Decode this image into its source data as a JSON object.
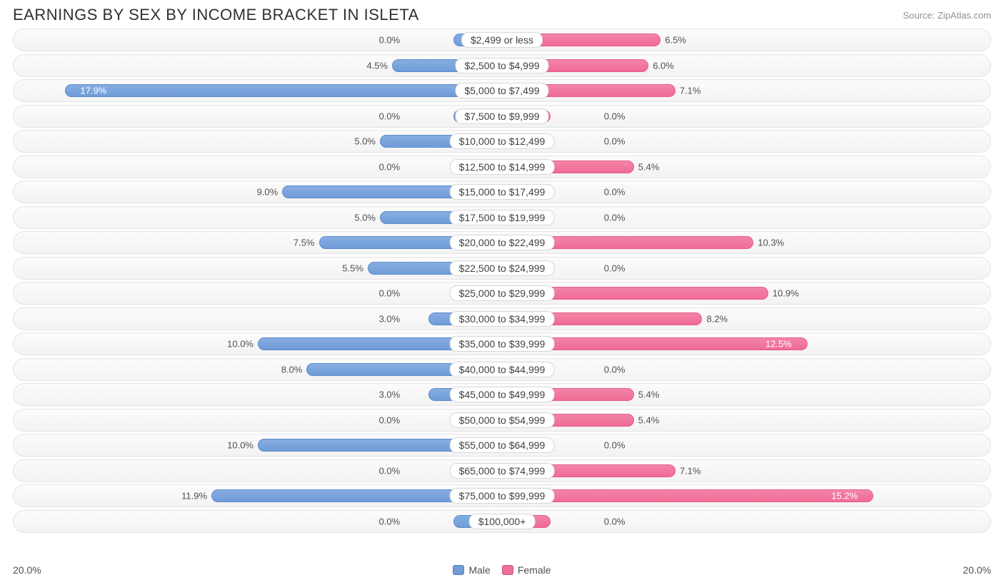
{
  "title": "EARNINGS BY SEX BY INCOME BRACKET IN ISLETA",
  "source": "Source: ZipAtlas.com",
  "chart": {
    "type": "diverging-bar",
    "axis_max": 20.0,
    "axis_left_label": "20.0%",
    "axis_right_label": "20.0%",
    "male_color": "#729dd7",
    "male_border": "#5e8ccd",
    "female_color": "#ef6f98",
    "female_border": "#e85c88",
    "row_bg_top": "#fbfbfb",
    "row_bg_bottom": "#f3f3f3",
    "row_border": "#e4e4e4",
    "label_bg": "#ffffff",
    "label_border": "#d8d8d8",
    "text_color": "#505050",
    "inside_text_color": "#ffffff",
    "min_bar_pct": 2.0,
    "label_half_width_pct": 10.0,
    "inside_threshold_pct": 12.0,
    "legend": {
      "male": "Male",
      "female": "Female"
    },
    "rows": [
      {
        "category": "$2,499 or less",
        "male": 0.0,
        "female": 6.5
      },
      {
        "category": "$2,500 to $4,999",
        "male": 4.5,
        "female": 6.0
      },
      {
        "category": "$5,000 to $7,499",
        "male": 17.9,
        "female": 7.1
      },
      {
        "category": "$7,500 to $9,999",
        "male": 0.0,
        "female": 0.0
      },
      {
        "category": "$10,000 to $12,499",
        "male": 5.0,
        "female": 0.0
      },
      {
        "category": "$12,500 to $14,999",
        "male": 0.0,
        "female": 5.4
      },
      {
        "category": "$15,000 to $17,499",
        "male": 9.0,
        "female": 0.0
      },
      {
        "category": "$17,500 to $19,999",
        "male": 5.0,
        "female": 0.0
      },
      {
        "category": "$20,000 to $22,499",
        "male": 7.5,
        "female": 10.3
      },
      {
        "category": "$22,500 to $24,999",
        "male": 5.5,
        "female": 0.0
      },
      {
        "category": "$25,000 to $29,999",
        "male": 0.0,
        "female": 10.9
      },
      {
        "category": "$30,000 to $34,999",
        "male": 3.0,
        "female": 8.2
      },
      {
        "category": "$35,000 to $39,999",
        "male": 10.0,
        "female": 12.5
      },
      {
        "category": "$40,000 to $44,999",
        "male": 8.0,
        "female": 0.0
      },
      {
        "category": "$45,000 to $49,999",
        "male": 3.0,
        "female": 5.4
      },
      {
        "category": "$50,000 to $54,999",
        "male": 0.0,
        "female": 5.4
      },
      {
        "category": "$55,000 to $64,999",
        "male": 10.0,
        "female": 0.0
      },
      {
        "category": "$65,000 to $74,999",
        "male": 0.0,
        "female": 7.1
      },
      {
        "category": "$75,000 to $99,999",
        "male": 11.9,
        "female": 15.2
      },
      {
        "category": "$100,000+",
        "male": 0.0,
        "female": 0.0
      }
    ]
  }
}
